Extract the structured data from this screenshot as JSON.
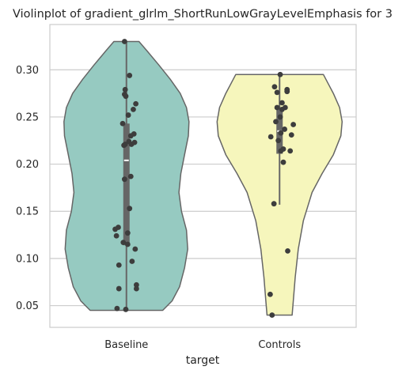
{
  "chart_data": {
    "type": "violin",
    "title": "Violinplot of gradient_glrlm_ShortRunLowGrayLevelEmphasis for 3",
    "xlabel": "target",
    "ylabel": "",
    "categories": [
      "Baseline",
      "Controls"
    ],
    "ylim": [
      0.027,
      0.348
    ],
    "yticks": [
      0.05,
      0.1,
      0.15,
      0.2,
      0.25,
      0.3
    ],
    "ytick_labels": [
      "0.05",
      "0.10",
      "0.15",
      "0.20",
      "0.25",
      "0.30"
    ],
    "grid": "horizontal",
    "colors": {
      "Baseline": "#96cac1",
      "Controls": "#f6f6bc",
      "outline": "#666666",
      "points": "#3d3d3d",
      "grid": "#cccccc",
      "box": "#666666",
      "median": "#ffffff"
    },
    "series": [
      {
        "category": "Baseline",
        "density": [
          [
            0.045,
            0.58
          ],
          [
            0.055,
            0.73
          ],
          [
            0.07,
            0.85
          ],
          [
            0.09,
            0.93
          ],
          [
            0.11,
            0.98
          ],
          [
            0.13,
            0.96
          ],
          [
            0.15,
            0.88
          ],
          [
            0.17,
            0.84
          ],
          [
            0.19,
            0.87
          ],
          [
            0.21,
            0.93
          ],
          [
            0.23,
            0.99
          ],
          [
            0.245,
            1.0
          ],
          [
            0.26,
            0.96
          ],
          [
            0.275,
            0.86
          ],
          [
            0.29,
            0.7
          ],
          [
            0.305,
            0.52
          ],
          [
            0.32,
            0.33
          ],
          [
            0.33,
            0.2
          ]
        ],
        "quartiles": {
          "q1": 0.114,
          "median": 0.204,
          "q3": 0.243,
          "whisker_low": 0.045,
          "whisker_high": 0.33
        },
        "points": [
          [
            -0.03,
            0.33
          ],
          [
            0.05,
            0.294
          ],
          [
            -0.02,
            0.279
          ],
          [
            -0.03,
            0.274
          ],
          [
            -0.01,
            0.272
          ],
          [
            0.15,
            0.264
          ],
          [
            0.11,
            0.258
          ],
          [
            0.03,
            0.252
          ],
          [
            -0.06,
            0.243
          ],
          [
            0.12,
            0.232
          ],
          [
            0.07,
            0.23
          ],
          [
            0.04,
            0.224
          ],
          [
            0.13,
            0.223
          ],
          [
            0.08,
            0.221
          ],
          [
            -0.04,
            0.22
          ],
          [
            -0.02,
            0.221
          ],
          [
            0.07,
            0.187
          ],
          [
            -0.03,
            0.184
          ],
          [
            0.05,
            0.153
          ],
          [
            -0.18,
            0.131
          ],
          [
            -0.13,
            0.133
          ],
          [
            0.02,
            0.127
          ],
          [
            -0.16,
            0.124
          ],
          [
            -0.05,
            0.117
          ],
          [
            0.14,
            0.11
          ],
          [
            0.02,
            0.115
          ],
          [
            0.09,
            0.097
          ],
          [
            -0.12,
            0.093
          ],
          [
            0.16,
            0.072
          ],
          [
            0.16,
            0.068
          ],
          [
            -0.12,
            0.068
          ],
          [
            -0.15,
            0.047
          ],
          [
            -0.01,
            0.046
          ]
        ]
      },
      {
        "category": "Controls",
        "density": [
          [
            0.04,
            0.2
          ],
          [
            0.055,
            0.22
          ],
          [
            0.08,
            0.25
          ],
          [
            0.11,
            0.3
          ],
          [
            0.14,
            0.38
          ],
          [
            0.17,
            0.52
          ],
          [
            0.19,
            0.68
          ],
          [
            0.21,
            0.86
          ],
          [
            0.23,
            0.98
          ],
          [
            0.245,
            1.0
          ],
          [
            0.26,
            0.96
          ],
          [
            0.275,
            0.86
          ],
          [
            0.285,
            0.78
          ],
          [
            0.295,
            0.7
          ]
        ],
        "quartiles": {
          "q1": 0.211,
          "median": 0.235,
          "q3": 0.26,
          "whisker_low": 0.157,
          "whisker_high": 0.295
        },
        "points": [
          [
            0.01,
            0.295
          ],
          [
            -0.08,
            0.282
          ],
          [
            0.12,
            0.279
          ],
          [
            -0.04,
            0.276
          ],
          [
            0.12,
            0.277
          ],
          [
            0.04,
            0.265
          ],
          [
            -0.04,
            0.26
          ],
          [
            0.09,
            0.26
          ],
          [
            0.04,
            0.258
          ],
          [
            0.01,
            0.25
          ],
          [
            -0.06,
            0.245
          ],
          [
            0.22,
            0.242
          ],
          [
            0.08,
            0.237
          ],
          [
            0.02,
            0.233
          ],
          [
            0.19,
            0.231
          ],
          [
            -0.14,
            0.229
          ],
          [
            -0.02,
            0.225
          ],
          [
            0.06,
            0.216
          ],
          [
            0.02,
            0.214
          ],
          [
            0.17,
            0.214
          ],
          [
            0.06,
            0.202
          ],
          [
            -0.09,
            0.158
          ],
          [
            0.13,
            0.108
          ],
          [
            -0.15,
            0.062
          ],
          [
            -0.12,
            0.04
          ]
        ]
      }
    ]
  }
}
